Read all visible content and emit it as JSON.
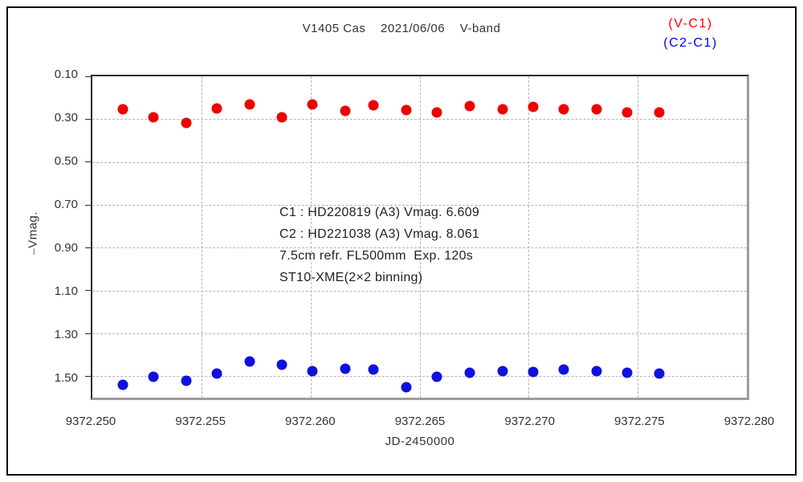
{
  "page": {
    "title": "V1405 Cas    2021/06/06    V-band"
  },
  "legend": [
    {
      "label": "(V-C1)",
      "color": "#ff0000"
    },
    {
      "label": "(C2-C1)",
      "color": "#0000ff"
    }
  ],
  "annotation": {
    "lines": [
      "C1 : HD220819 (A3) Vmag. 6.609",
      "C2 : HD221038 (A3) Vmag. 8.061",
      "7.5cm refr. FL500mm  Exp. 120s",
      "ST10-XME(2×2 binning)"
    ]
  },
  "axes": {
    "xlabel": "JD-2450000",
    "ylabel": "⧿Vmag."
  },
  "chart_data": {
    "type": "scatter",
    "title": "V1405 Cas 2021/06/06 V-band",
    "xlabel": "JD-2450000",
    "ylabel": "⧿Vmag.",
    "xlim": [
      9372.25,
      9372.28
    ],
    "ylim": [
      0.1,
      1.6
    ],
    "y_direction": "down",
    "grid": "dashed",
    "x_tick_values": [
      9372.25,
      9372.255,
      9372.26,
      9372.265,
      9372.27,
      9372.275,
      9372.28
    ],
    "x_tick_labels": [
      "9372.250",
      "9372.255",
      "9372.260",
      "9372.265",
      "9372.270",
      "9372.275",
      "9372.280"
    ],
    "y_tick_values": [
      0.1,
      0.3,
      0.5,
      0.7,
      0.9,
      1.1,
      1.3,
      1.5
    ],
    "y_tick_labels": [
      "0.10",
      "0.30",
      "0.50",
      "0.70",
      "0.90",
      "1.10",
      "1.30",
      "1.50"
    ],
    "x_gridlines": [
      9372.255,
      9372.26,
      9372.265,
      9372.27,
      9372.275
    ],
    "y_gridlines": [
      0.3,
      0.5,
      0.7,
      0.9,
      1.1,
      1.3,
      1.5
    ],
    "x": [
      9372.2514,
      9372.2528,
      9372.2543,
      9372.2557,
      9372.2572,
      9372.2587,
      9372.2601,
      9372.2616,
      9372.2629,
      9372.2644,
      9372.2658,
      9372.2673,
      9372.2688,
      9372.2702,
      9372.2716,
      9372.2731,
      9372.2745,
      9372.276
    ],
    "series": [
      {
        "name": "V-C1",
        "color": "#ee0000",
        "marker": "circle",
        "values": [
          0.255,
          0.29,
          0.318,
          0.25,
          0.233,
          0.292,
          0.233,
          0.263,
          0.234,
          0.259,
          0.27,
          0.239,
          0.255,
          0.242,
          0.252,
          0.252,
          0.27,
          0.267
        ]
      },
      {
        "name": "C2-C1",
        "color": "#1111dd",
        "marker": "circle",
        "values": [
          1.54,
          1.501,
          1.521,
          1.486,
          1.431,
          1.447,
          1.475,
          1.465,
          1.469,
          1.552,
          1.501,
          1.484,
          1.477,
          1.48,
          1.468,
          1.477,
          1.484,
          1.489
        ]
      }
    ]
  }
}
